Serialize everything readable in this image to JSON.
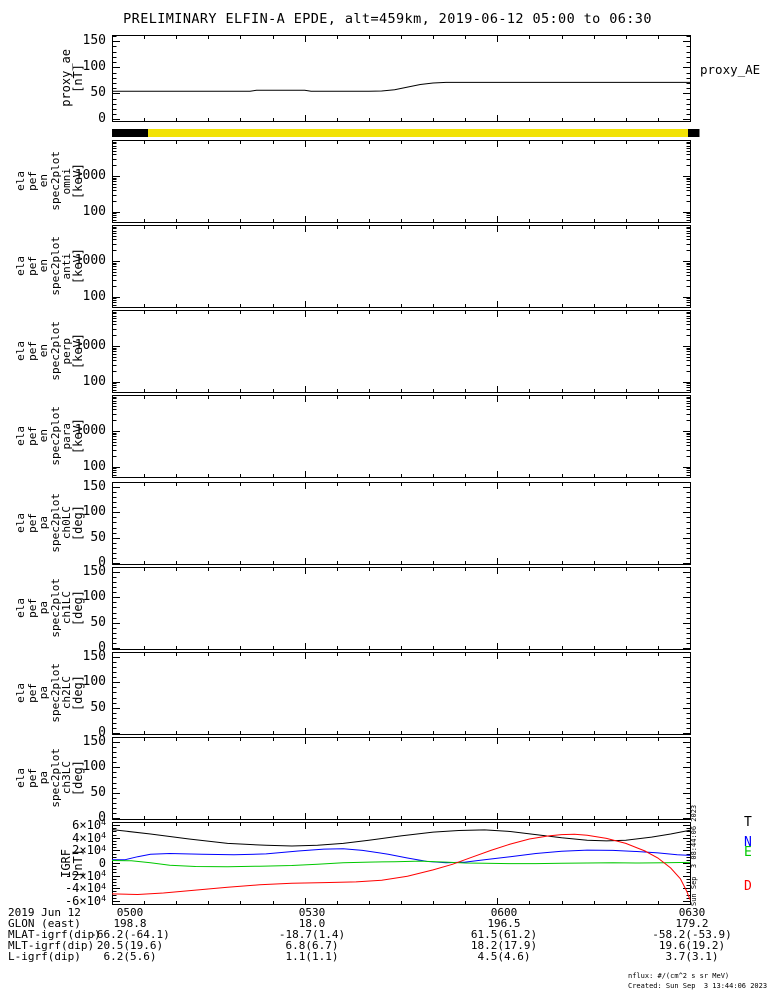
{
  "title": "PRELIMINARY ELFIN-A EPDE, alt=459km, 2019-06-12 05:00 to 06:30",
  "labels": {
    "proxy_ae_right": "proxy_AE"
  },
  "vertical_timestamp": "Sun Sep  3 08:44:06 2023",
  "notes": {
    "nflux": "nflux: #/(cm^2 s sr MeV)",
    "created": "Created: Sun Sep  3 13:44:06 2023"
  },
  "footer": {
    "rows": [
      {
        "label": "2019 Jun 12",
        "values": [
          "0500",
          "0530",
          "0600",
          "0630"
        ]
      },
      {
        "label": "GLON (east)",
        "values": [
          "198.8",
          "18.0",
          "196.5",
          "179.2"
        ]
      },
      {
        "label": "MLAT-igrf(dip)",
        "values": [
          "-66.2(-64.1)",
          "-18.7(1.4)",
          "61.5(61.2)",
          "-58.2(-53.9)"
        ]
      },
      {
        "label": "MLT-igrf(dip)",
        "values": [
          "20.5(19.6)",
          "6.8(6.7)",
          "18.2(17.9)",
          "19.6(19.2)"
        ]
      },
      {
        "label": "L-igrf(dip)",
        "values": [
          "6.2(5.6)",
          "1.1(1.1)",
          "4.5(4.6)",
          "3.7(3.1)"
        ]
      }
    ]
  },
  "colors": {
    "frame": "#000000",
    "flag_yellow": "#f2e205",
    "flag_black": "#000000",
    "trace_T": "#000000",
    "trace_N": "#0000ff",
    "trace_E": "#00c800",
    "trace_D": "#ff0000"
  },
  "chart_data": {
    "type": "line",
    "layout": "stacked-panels",
    "title": "PRELIMINARY ELFIN-A EPDE, alt=459km, 2019-06-12 05:00 to 06:30",
    "time_axis": {
      "start_label": "0500",
      "end_label": "0630",
      "minutes_range": [
        0,
        90
      ],
      "major_ticks": [
        {
          "minute": 0,
          "label": "0500"
        },
        {
          "minute": 30,
          "label": "0530"
        },
        {
          "minute": 60,
          "label": "0600"
        },
        {
          "minute": 90,
          "label": "0630"
        }
      ],
      "minor_tick_step_minutes": 5
    },
    "panels": [
      {
        "id": "proxy_ae",
        "ylabel_lines": [
          "proxy_ae",
          "[nT]"
        ],
        "yscale": "linear",
        "yrange": [
          -3,
          162
        ],
        "yticks": [
          {
            "v": 0,
            "label": "0"
          },
          {
            "v": 50,
            "label": "50"
          },
          {
            "v": 100,
            "label": "100"
          },
          {
            "v": 150,
            "label": "150"
          }
        ],
        "yminor_step": 10,
        "series": [
          {
            "name": "proxy_AE",
            "color": "#000000",
            "points": [
              [
                0,
                54
              ],
              [
                20,
                54
              ],
              [
                21.5,
                54
              ],
              [
                22.5,
                56
              ],
              [
                30,
                56
              ],
              [
                31,
                54
              ],
              [
                40,
                54
              ],
              [
                42,
                54.5
              ],
              [
                44,
                57
              ],
              [
                46,
                62
              ],
              [
                48,
                67
              ],
              [
                50,
                70
              ],
              [
                52,
                71
              ],
              [
                60,
                71
              ],
              [
                90,
                71
              ]
            ]
          }
        ]
      },
      {
        "id": "flag_bar",
        "type": "bar",
        "segments": [
          {
            "from_minute": 0,
            "to_minute": 5.6,
            "color": "#000000"
          },
          {
            "from_minute": 5.6,
            "to_minute": 89.7,
            "color": "#f2e205"
          },
          {
            "from_minute": 89.7,
            "to_minute": 91.5,
            "color": "#000000"
          }
        ]
      },
      {
        "id": "en_omni",
        "ylabel_lines": [
          "ela",
          "pef",
          "en",
          "spec2plot",
          "omni",
          "[keV]"
        ],
        "yscale": "log",
        "yrange": [
          52,
          10000
        ],
        "yticks": [
          {
            "v": 100,
            "label": "100"
          },
          {
            "v": 1000,
            "label": "1000"
          }
        ],
        "empty": true,
        "series": []
      },
      {
        "id": "en_anti",
        "ylabel_lines": [
          "ela",
          "pef",
          "en",
          "spec2plot",
          "anti",
          "[keV]"
        ],
        "yscale": "log",
        "yrange": [
          52,
          10000
        ],
        "yticks": [
          {
            "v": 100,
            "label": "100"
          },
          {
            "v": 1000,
            "label": "1000"
          }
        ],
        "empty": true,
        "series": []
      },
      {
        "id": "en_perp",
        "ylabel_lines": [
          "ela",
          "pef",
          "en",
          "spec2plot",
          "perp",
          "[keV]"
        ],
        "yscale": "log",
        "yrange": [
          52,
          10000
        ],
        "yticks": [
          {
            "v": 100,
            "label": "100"
          },
          {
            "v": 1000,
            "label": "1000"
          }
        ],
        "empty": true,
        "series": []
      },
      {
        "id": "en_para",
        "ylabel_lines": [
          "ela",
          "pef",
          "en",
          "spec2plot",
          "para",
          "[keV]"
        ],
        "yscale": "log",
        "yrange": [
          52,
          10000
        ],
        "yticks": [
          {
            "v": 100,
            "label": "100"
          },
          {
            "v": 1000,
            "label": "1000"
          }
        ],
        "empty": true,
        "series": []
      },
      {
        "id": "pa_ch0lc",
        "ylabel_lines": [
          "ela",
          "pef",
          "pa",
          "spec2plot",
          "ch0LC",
          "[deg]"
        ],
        "yscale": "linear",
        "yrange": [
          -2,
          160
        ],
        "yticks": [
          {
            "v": 0,
            "label": "0"
          },
          {
            "v": 50,
            "label": "50"
          },
          {
            "v": 100,
            "label": "100"
          },
          {
            "v": 150,
            "label": "150"
          }
        ],
        "yminor_step": 10,
        "empty": true,
        "series": []
      },
      {
        "id": "pa_ch1lc",
        "ylabel_lines": [
          "ela",
          "pef",
          "pa",
          "spec2plot",
          "ch1LC",
          "[deg]"
        ],
        "yscale": "linear",
        "yrange": [
          -2,
          160
        ],
        "yticks": [
          {
            "v": 0,
            "label": "0"
          },
          {
            "v": 50,
            "label": "50"
          },
          {
            "v": 100,
            "label": "100"
          },
          {
            "v": 150,
            "label": "150"
          }
        ],
        "yminor_step": 10,
        "empty": true,
        "series": []
      },
      {
        "id": "pa_ch2lc",
        "ylabel_lines": [
          "ela",
          "pef",
          "pa",
          "spec2plot",
          "ch2LC",
          "[deg]"
        ],
        "yscale": "linear",
        "yrange": [
          -2,
          160
        ],
        "yticks": [
          {
            "v": 0,
            "label": "0"
          },
          {
            "v": 50,
            "label": "50"
          },
          {
            "v": 100,
            "label": "100"
          },
          {
            "v": 150,
            "label": "150"
          }
        ],
        "yminor_step": 10,
        "empty": true,
        "series": []
      },
      {
        "id": "pa_ch3lc",
        "ylabel_lines": [
          "ela",
          "pef",
          "pa",
          "spec2plot",
          "ch3LC",
          "[deg]"
        ],
        "yscale": "linear",
        "yrange": [
          -2,
          160
        ],
        "yticks": [
          {
            "v": 0,
            "label": "0"
          },
          {
            "v": 50,
            "label": "50"
          },
          {
            "v": 100,
            "label": "100"
          },
          {
            "v": 150,
            "label": "150"
          }
        ],
        "yminor_step": 10,
        "empty": true,
        "series": []
      },
      {
        "id": "igrf",
        "ylabel_lines": [
          "IGRF",
          "[nT]"
        ],
        "yscale": "linear",
        "yrange": [
          -65000,
          65000
        ],
        "yticks": [
          {
            "v": 60000,
            "label": "6×10^4"
          },
          {
            "v": 40000,
            "label": "4×10^4"
          },
          {
            "v": 20000,
            "label": "2×10^4"
          },
          {
            "v": 0,
            "label": "0"
          },
          {
            "v": -20000,
            "label": "-2×10^4"
          },
          {
            "v": -40000,
            "label": "-4×10^4"
          },
          {
            "v": -60000,
            "label": "-6×10^4"
          }
        ],
        "yminor_step": 5000,
        "line_labels": [
          {
            "text": "T",
            "color": "#000000"
          },
          {
            "text": "N",
            "color": "#0000ff"
          },
          {
            "text": "E",
            "color": "#00c800"
          },
          {
            "text": "D",
            "color": "#ff0000"
          }
        ],
        "series": [
          {
            "name": "T",
            "color": "#000000",
            "points": [
              [
                0,
                53000
              ],
              [
                6,
                46000
              ],
              [
                12,
                38000
              ],
              [
                18,
                31000
              ],
              [
                24,
                28000
              ],
              [
                28,
                27000
              ],
              [
                32,
                28000
              ],
              [
                36,
                31000
              ],
              [
                40,
                36000
              ],
              [
                45,
                43000
              ],
              [
                50,
                49000
              ],
              [
                54,
                51500
              ],
              [
                58,
                52500
              ],
              [
                62,
                50000
              ],
              [
                66,
                45000
              ],
              [
                70,
                40000
              ],
              [
                74,
                36000
              ],
              [
                77,
                35000
              ],
              [
                80,
                36000
              ],
              [
                84,
                41000
              ],
              [
                87,
                46000
              ],
              [
                90,
                52000
              ]
            ]
          },
          {
            "name": "N",
            "color": "#0000ff",
            "points": [
              [
                0,
                5000
              ],
              [
                2,
                5000
              ],
              [
                4,
                10000
              ],
              [
                6,
                14000
              ],
              [
                9,
                15000
              ],
              [
                14,
                14000
              ],
              [
                19,
                13000
              ],
              [
                24,
                14500
              ],
              [
                29,
                19000
              ],
              [
                33,
                22000
              ],
              [
                36,
                22500
              ],
              [
                39,
                20000
              ],
              [
                43,
                14000
              ],
              [
                46,
                8000
              ],
              [
                49,
                2500
              ],
              [
                52,
                500
              ],
              [
                55,
                1500
              ],
              [
                58,
                5000
              ],
              [
                62,
                10000
              ],
              [
                66,
                15000
              ],
              [
                70,
                18500
              ],
              [
                74,
                20500
              ],
              [
                78,
                20000
              ],
              [
                82,
                18000
              ],
              [
                85,
                16000
              ],
              [
                88,
                13000
              ],
              [
                90,
                12000
              ]
            ]
          },
          {
            "name": "E",
            "color": "#00c800",
            "points": [
              [
                0,
                4000
              ],
              [
                3,
                3500
              ],
              [
                6,
                500
              ],
              [
                9,
                -3500
              ],
              [
                13,
                -5500
              ],
              [
                18,
                -6000
              ],
              [
                23,
                -5000
              ],
              [
                28,
                -4000
              ],
              [
                32,
                -2000
              ],
              [
                36,
                500
              ],
              [
                40,
                1500
              ],
              [
                44,
                2000
              ],
              [
                48,
                3000
              ],
              [
                52,
                1500
              ],
              [
                55,
                0
              ],
              [
                58,
                -500
              ],
              [
                62,
                -1000
              ],
              [
                66,
                -1000
              ],
              [
                70,
                -500
              ],
              [
                74,
                0
              ],
              [
                78,
                500
              ],
              [
                82,
                0
              ],
              [
                86,
                500
              ],
              [
                90,
                1000
              ]
            ]
          },
          {
            "name": "D",
            "color": "#ff0000",
            "points": [
              [
                0,
                -49000
              ],
              [
                4,
                -50000
              ],
              [
                8,
                -47500
              ],
              [
                13,
                -43000
              ],
              [
                18,
                -38500
              ],
              [
                23,
                -34500
              ],
              [
                28,
                -32000
              ],
              [
                33,
                -31000
              ],
              [
                38,
                -30000
              ],
              [
                42,
                -27500
              ],
              [
                46,
                -21000
              ],
              [
                50,
                -11000
              ],
              [
                53,
                -2000
              ],
              [
                56,
                9000
              ],
              [
                59,
                20000
              ],
              [
                62,
                30000
              ],
              [
                65,
                38000
              ],
              [
                68,
                43000
              ],
              [
                70,
                45000
              ],
              [
                72,
                45500
              ],
              [
                74,
                44000
              ],
              [
                77,
                39000
              ],
              [
                80,
                31000
              ],
              [
                83,
                19000
              ],
              [
                85,
                8000
              ],
              [
                87,
                -8000
              ],
              [
                88.5,
                -25000
              ],
              [
                89.5,
                -45000
              ],
              [
                90,
                -58000
              ]
            ]
          }
        ]
      }
    ]
  }
}
